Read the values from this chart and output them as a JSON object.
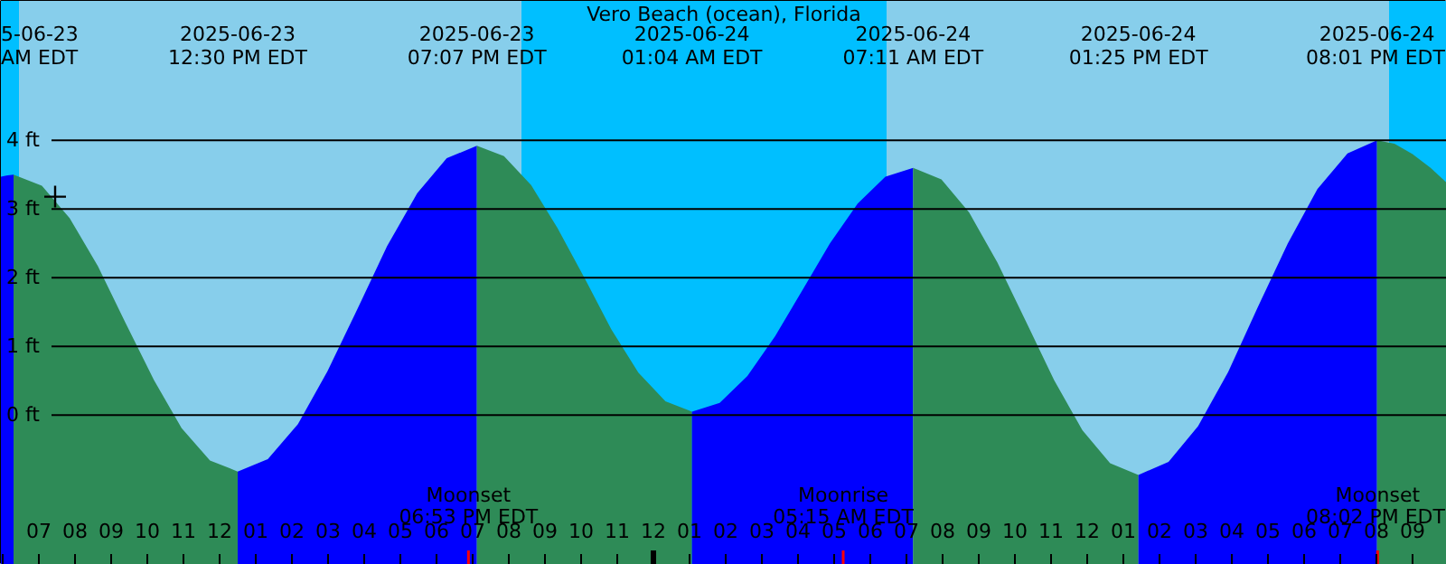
{
  "chart_data": {
    "type": "area",
    "title": "Vero Beach (ocean), Florida",
    "xlim": [
      "2025-06-23T05:57",
      "2025-06-24T21:57"
    ],
    "ylim": [
      -2.18,
      6.03
    ],
    "yticks": [
      {
        "value": 0,
        "label": "0 ft"
      },
      {
        "value": 1,
        "label": "1 ft"
      },
      {
        "value": 2,
        "label": "2 ft"
      },
      {
        "value": 3,
        "label": "3 ft"
      },
      {
        "value": 4,
        "label": "4 ft"
      }
    ],
    "xticks": [
      {
        "value": "2025-06-23T06:00",
        "label": null
      },
      {
        "value": "2025-06-23T07:00",
        "label": "07"
      },
      {
        "value": "2025-06-23T08:00",
        "label": "08"
      },
      {
        "value": "2025-06-23T09:00",
        "label": "09"
      },
      {
        "value": "2025-06-23T10:00",
        "label": "10"
      },
      {
        "value": "2025-06-23T11:00",
        "label": "11"
      },
      {
        "value": "2025-06-23T12:00",
        "label": "12"
      },
      {
        "value": "2025-06-23T13:00",
        "label": "01"
      },
      {
        "value": "2025-06-23T14:00",
        "label": "02"
      },
      {
        "value": "2025-06-23T15:00",
        "label": "03"
      },
      {
        "value": "2025-06-23T16:00",
        "label": "04"
      },
      {
        "value": "2025-06-23T17:00",
        "label": "05"
      },
      {
        "value": "2025-06-23T18:00",
        "label": "06"
      },
      {
        "value": "2025-06-23T19:00",
        "label": "07"
      },
      {
        "value": "2025-06-23T20:00",
        "label": "08"
      },
      {
        "value": "2025-06-23T21:00",
        "label": "09"
      },
      {
        "value": "2025-06-23T22:00",
        "label": "10"
      },
      {
        "value": "2025-06-23T23:00",
        "label": "11"
      },
      {
        "value": "2025-06-24T00:00",
        "label": "12"
      },
      {
        "value": "2025-06-24T01:00",
        "label": "01"
      },
      {
        "value": "2025-06-24T02:00",
        "label": "02"
      },
      {
        "value": "2025-06-24T03:00",
        "label": "03"
      },
      {
        "value": "2025-06-24T04:00",
        "label": "04"
      },
      {
        "value": "2025-06-24T05:00",
        "label": "05"
      },
      {
        "value": "2025-06-24T06:00",
        "label": "06"
      },
      {
        "value": "2025-06-24T07:00",
        "label": "07"
      },
      {
        "value": "2025-06-24T08:00",
        "label": "08"
      },
      {
        "value": "2025-06-24T09:00",
        "label": "09"
      },
      {
        "value": "2025-06-24T10:00",
        "label": "10"
      },
      {
        "value": "2025-06-24T11:00",
        "label": "11"
      },
      {
        "value": "2025-06-24T12:00",
        "label": "12"
      },
      {
        "value": "2025-06-24T13:00",
        "label": "01"
      },
      {
        "value": "2025-06-24T14:00",
        "label": "02"
      },
      {
        "value": "2025-06-24T15:00",
        "label": "03"
      },
      {
        "value": "2025-06-24T16:00",
        "label": "04"
      },
      {
        "value": "2025-06-24T17:00",
        "label": "05"
      },
      {
        "value": "2025-06-24T18:00",
        "label": "06"
      },
      {
        "value": "2025-06-24T19:00",
        "label": "07"
      },
      {
        "value": "2025-06-24T20:00",
        "label": "08"
      },
      {
        "value": "2025-06-24T21:00",
        "label": "09"
      }
    ],
    "grid": "y",
    "series": [
      {
        "color": "#0000ff",
        "x": [
          "2025-06-23T05:57",
          "2025-06-23T06:08",
          "2025-06-23T06:18"
        ],
        "values": [
          3.47,
          3.49,
          3.5
        ]
      },
      {
        "color": "#2e8b57",
        "x": [
          "2025-06-23T06:18",
          "2025-06-23T07:05",
          "2025-06-23T07:51",
          "2025-06-23T08:38",
          "2025-06-23T09:24",
          "2025-06-23T10:11",
          "2025-06-23T10:57",
          "2025-06-23T11:44",
          "2025-06-23T12:30"
        ],
        "values": [
          3.5,
          3.34,
          2.87,
          2.17,
          1.34,
          0.51,
          -0.19,
          -0.66,
          -0.82
        ]
      },
      {
        "color": "#0000ff",
        "x": [
          "2025-06-23T12:30",
          "2025-06-23T13:20",
          "2025-06-23T14:10",
          "2025-06-23T14:59",
          "2025-06-23T15:49",
          "2025-06-23T16:38",
          "2025-06-23T17:28",
          "2025-06-23T18:17",
          "2025-06-23T19:07"
        ],
        "values": [
          -0.82,
          -0.64,
          -0.13,
          0.64,
          1.55,
          2.46,
          3.23,
          3.74,
          3.92
        ]
      },
      {
        "color": "#2e8b57",
        "x": [
          "2025-06-23T19:07",
          "2025-06-23T19:52",
          "2025-06-23T20:37",
          "2025-06-23T21:21",
          "2025-06-23T22:06",
          "2025-06-23T22:50",
          "2025-06-23T23:35",
          "2025-06-24T00:20",
          "2025-06-24T01:04"
        ],
        "values": [
          3.92,
          3.77,
          3.35,
          2.72,
          1.99,
          1.25,
          0.62,
          0.2,
          0.05
        ]
      },
      {
        "color": "#0000ff",
        "x": [
          "2025-06-24T01:04",
          "2025-06-24T01:50",
          "2025-06-24T02:36",
          "2025-06-24T03:22",
          "2025-06-24T04:08",
          "2025-06-24T04:53",
          "2025-06-24T05:39",
          "2025-06-24T06:25",
          "2025-06-24T07:11"
        ],
        "values": [
          0.05,
          0.18,
          0.57,
          1.15,
          1.83,
          2.5,
          3.08,
          3.47,
          3.6
        ]
      },
      {
        "color": "#2e8b57",
        "x": [
          "2025-06-24T07:11",
          "2025-06-24T07:58",
          "2025-06-24T08:44",
          "2025-06-24T09:31",
          "2025-06-24T10:18",
          "2025-06-24T11:05",
          "2025-06-24T11:52",
          "2025-06-24T12:38",
          "2025-06-24T13:25"
        ],
        "values": [
          3.6,
          3.43,
          2.95,
          2.22,
          1.37,
          0.51,
          -0.22,
          -0.7,
          -0.87
        ]
      },
      {
        "color": "#0000ff",
        "x": [
          "2025-06-24T13:25",
          "2025-06-24T14:15",
          "2025-06-24T15:04",
          "2025-06-24T15:54",
          "2025-06-24T16:43",
          "2025-06-24T17:33",
          "2025-06-24T18:22",
          "2025-06-24T19:12",
          "2025-06-24T20:01"
        ],
        "values": [
          -0.87,
          -0.68,
          -0.16,
          0.63,
          1.57,
          2.5,
          3.29,
          3.81,
          4.0
        ]
      },
      {
        "color": "#2e8b57",
        "x": [
          "2025-06-24T20:01",
          "2025-06-24T20:30",
          "2025-06-24T21:00",
          "2025-06-24T21:30",
          "2025-06-24T21:57"
        ],
        "values": [
          4.0,
          3.95,
          3.8,
          3.6,
          3.38
        ]
      },
      {
        "type": "scatter",
        "marker": "cross",
        "color": "#000000",
        "x": [
          "2025-06-23T07:27"
        ],
        "values": [
          3.18
        ]
      }
    ],
    "bands": [
      {
        "axis": "x",
        "from": "2025-06-23T05:57",
        "to": "2025-06-23T06:27",
        "color": "#00bfff"
      },
      {
        "axis": "x",
        "from": "2025-06-23T06:27",
        "to": "2025-06-23T20:21",
        "color": "#87ceeb"
      },
      {
        "axis": "x",
        "from": "2025-06-23T20:21",
        "to": "2025-06-24T06:27",
        "color": "#00bfff"
      },
      {
        "axis": "x",
        "from": "2025-06-24T06:27",
        "to": "2025-06-24T20:21",
        "color": "#87ceeb"
      },
      {
        "axis": "x",
        "from": "2025-06-24T20:21",
        "to": "2025-06-24T21:57",
        "color": "#00bfff"
      }
    ],
    "ref_lines": [
      {
        "axis": "x",
        "value": "2025-06-23T18:53",
        "color": "#ff0000",
        "label": "Moonset\n06:53 PM EDT"
      },
      {
        "axis": "x",
        "value": "2025-06-24T05:15",
        "color": "#ff0000",
        "label": "Moonrise\n05:15 AM EDT"
      },
      {
        "axis": "x",
        "value": "2025-06-24T20:02",
        "color": "#ff0000",
        "label": "Moonset\n08:02 PM EDT"
      }
    ],
    "annotations": [
      "5-06-23\nAM EDT",
      "2025-06-23\n12:30 PM EDT",
      "2025-06-23\n07:07 PM EDT",
      "2025-06-24\n01:04 AM EDT",
      "2025-06-24\n07:11 AM EDT",
      "2025-06-24\n01:25 PM EDT",
      "2025-06-24\n08:01 PM EDT"
    ]
  }
}
